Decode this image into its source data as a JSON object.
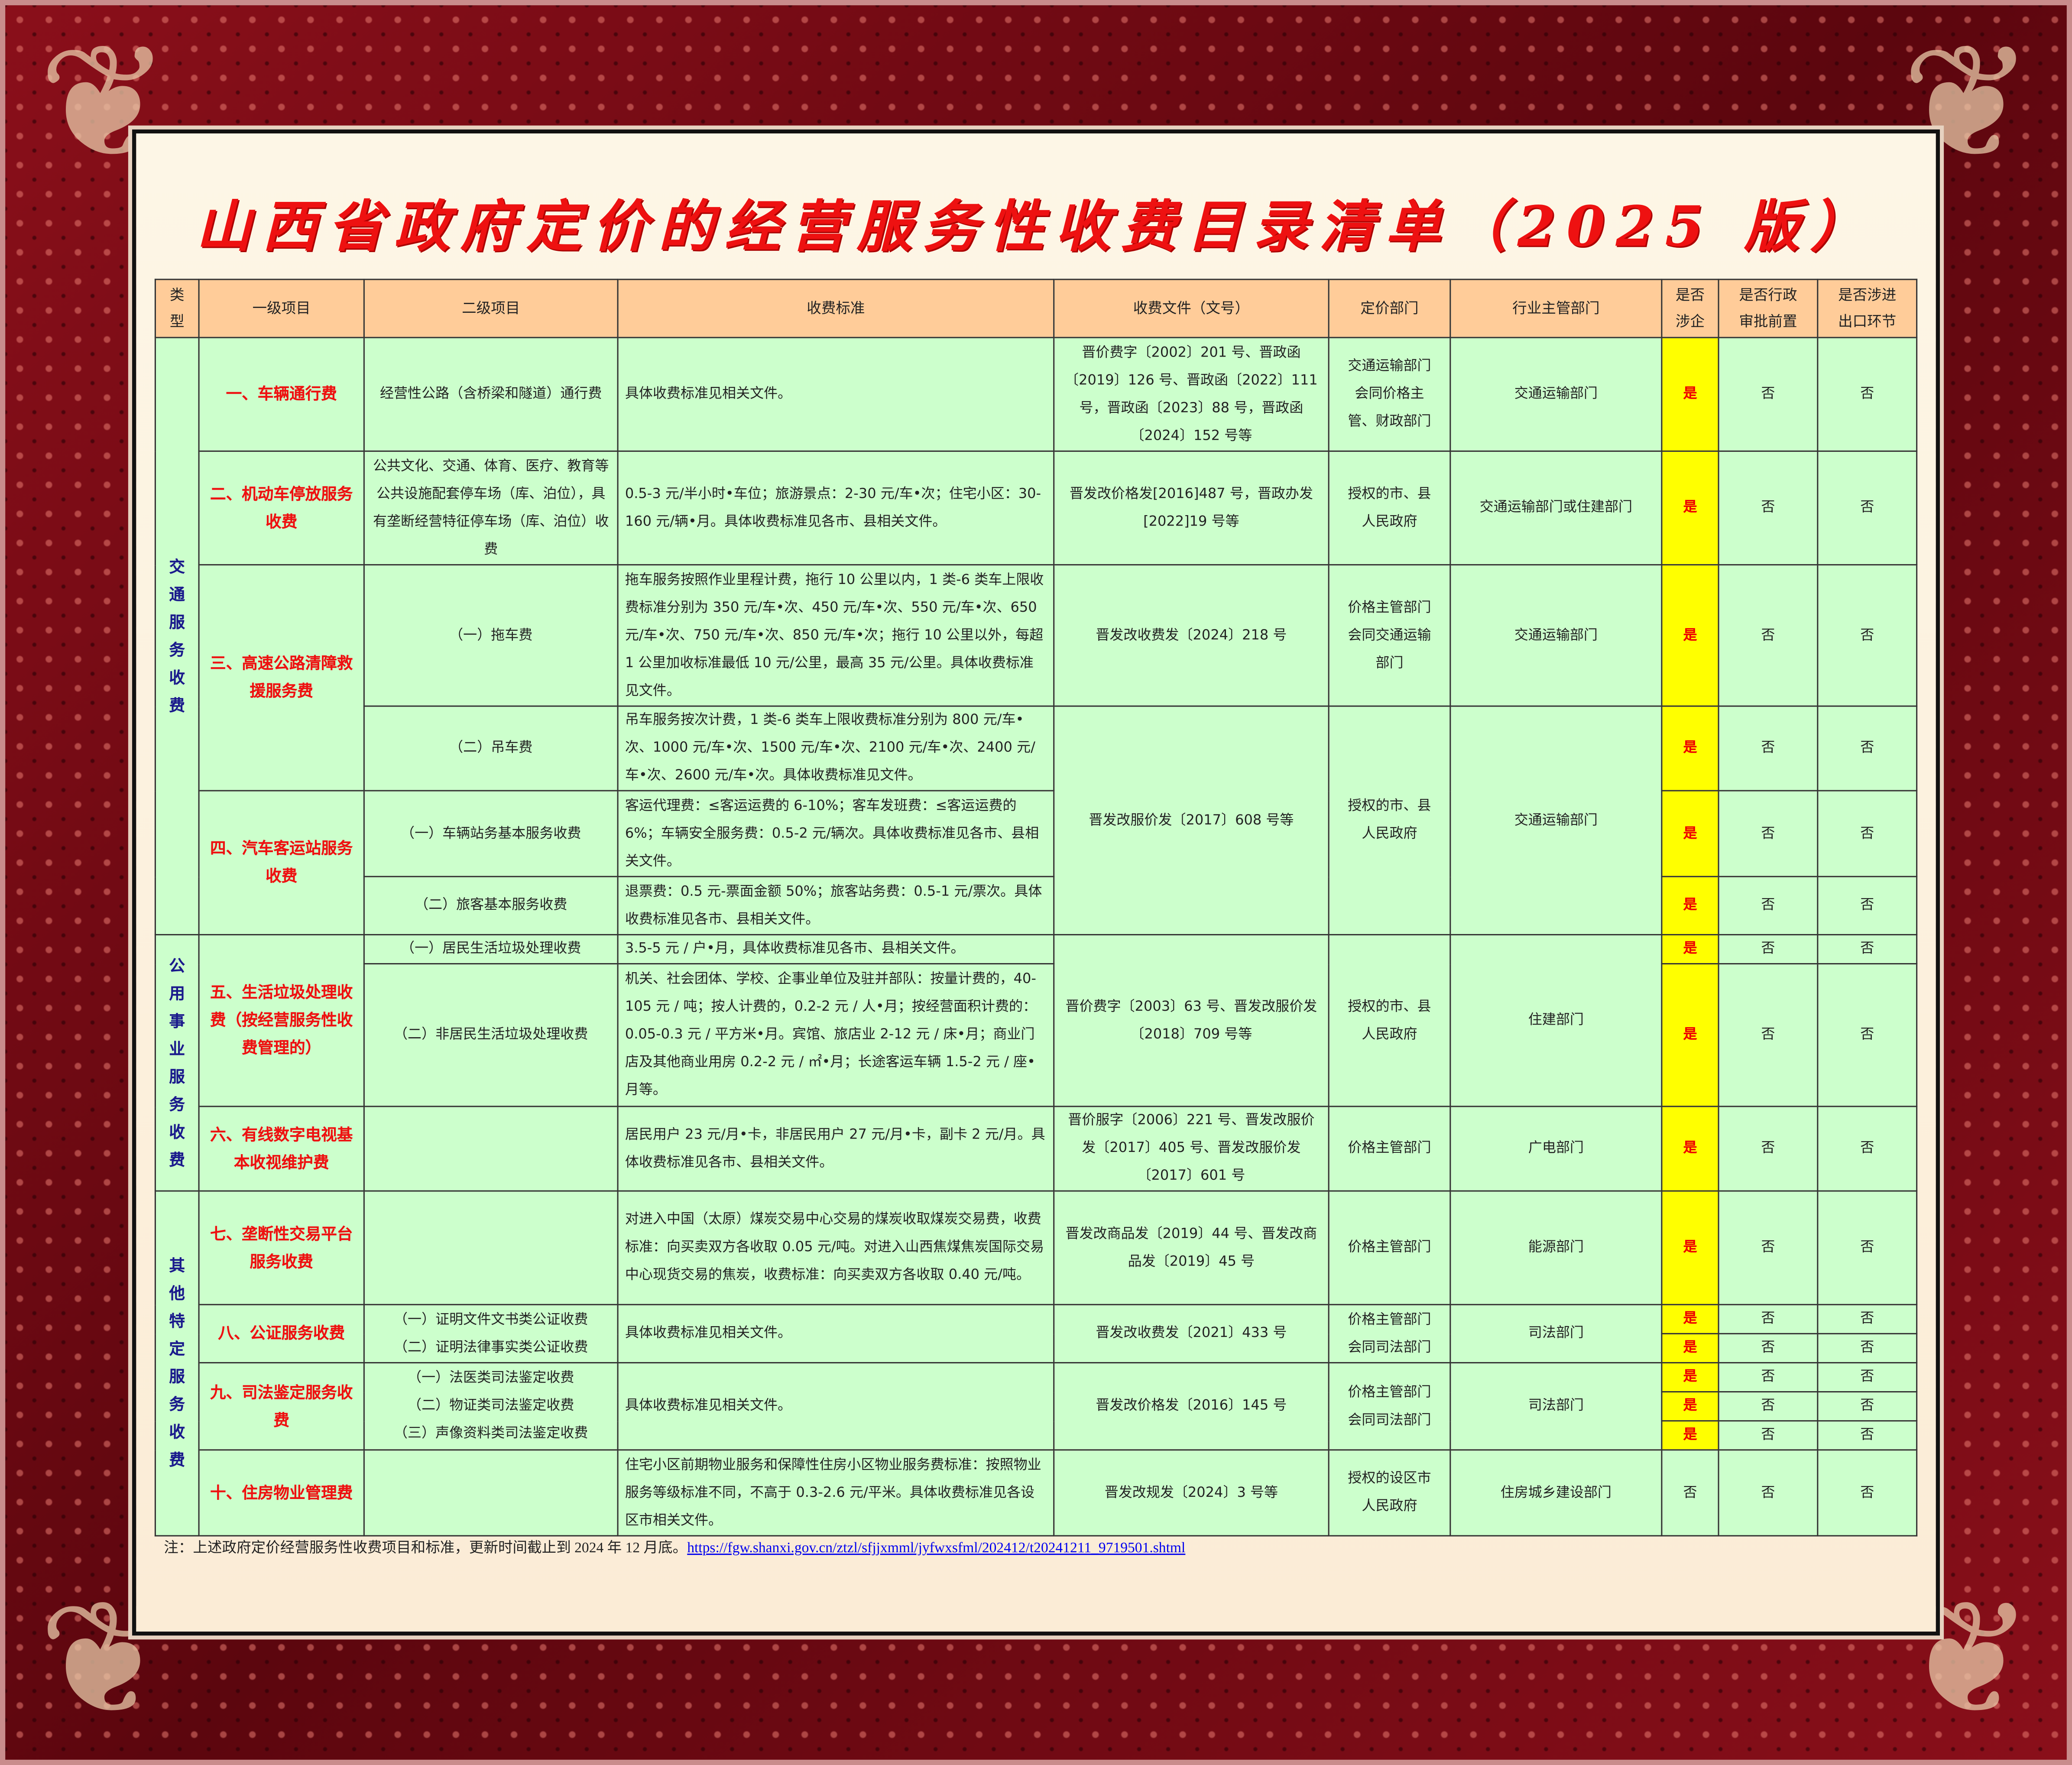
{
  "title": "山西省政府定价的经营服务性收费目录清单（2025 版）",
  "colors": {
    "frame": "#6d0a12",
    "header": "#ffcc99",
    "cell": "#ccffcc",
    "highlight": "#ffff00",
    "accent_red": "#ee1111",
    "category_blue": "#1a1a8c"
  },
  "columns": [
    "类\n型",
    "一级项目",
    "二级项目",
    "收费标准",
    "收费文件（文号）",
    "定价部门",
    "行业主管部门",
    "是否\n涉企",
    "是否行政\n审批前置",
    "是否涉进\n出口环节"
  ],
  "rows": [
    {
      "category": "交\n通\n服\n务\n收\n费",
      "level1": "一、车辆通行费",
      "level2": "经营性公路（含桥梁和隧道）通行费",
      "standard": "具体收费标准见相关文件。",
      "document": "晋价费字〔2002〕201 号、晋政函〔2019〕126 号、晋政函〔2022〕111 号，晋政函〔2023〕88 号，晋政函〔2024〕152 号等",
      "pricing_dept": "交通运输部门\n会同价格主\n管、财政部门",
      "industry_dept": "交通运输部门",
      "involves_enterprise": "是",
      "admin_approval": "否",
      "import_export": "否"
    },
    {
      "level1": "二、机动车停放服务收费",
      "level2": "公共文化、交通、体育、医疗、教育等公共设施配套停车场（库、泊位），具有垄断经营特征停车场（库、泊位）收费",
      "standard": "0.5-3 元/半小时•车位；旅游景点：2-30 元/车•次；住宅小区：30-160 元/辆•月。具体收费标准见各市、县相关文件。",
      "document": "晋发改价格发[2016]487 号，晋政办发[2022]19 号等",
      "pricing_dept": "授权的市、县\n人民政府",
      "industry_dept": "交通运输部门或住建部门",
      "involves_enterprise": "是",
      "admin_approval": "否",
      "import_export": "否"
    },
    {
      "level1": "三、高速公路清障救援服务费",
      "level2": "（一）拖车费",
      "standard": "拖车服务按照作业里程计费，拖行 10 公里以内，1 类-6 类车上限收费标准分别为 350 元/车•次、450 元/车•次、550 元/车•次、650 元/车•次、750 元/车•次、850 元/车•次；拖行 10 公里以外，每超 1 公里加收标准最低 10 元/公里，最高 35 元/公里。具体收费标准见文件。",
      "document": "晋发改收费发〔2024〕218 号",
      "pricing_dept": "价格主管部门\n会同交通运输\n部门",
      "industry_dept": "交通运输部门",
      "involves_enterprise": "是",
      "admin_approval": "否",
      "import_export": "否"
    },
    {
      "level2": "（二）吊车费",
      "standard": "吊车服务按次计费，1 类-6 类车上限收费标准分别为 800 元/车•次、1000 元/车•次、1500 元/车•次、2100 元/车•次、2400 元/车•次、2600 元/车•次。具体收费标准见文件。",
      "document": "晋发改服价发〔2017〕608 号等",
      "pricing_dept": "授权的市、县\n人民政府",
      "industry_dept": "交通运输部门",
      "involves_enterprise": "是",
      "admin_approval": "否",
      "import_export": "否"
    },
    {
      "level1": "四、汽车客运站服务收费",
      "level2": "（一）车辆站务基本服务收费",
      "standard": "客运代理费：≤客运运费的 6-10%；客车发班费：≤客运运费的 6%；车辆安全服务费：0.5-2 元/辆次。具体收费标准见各市、县相关文件。",
      "involves_enterprise": "是",
      "admin_approval": "否",
      "import_export": "否"
    },
    {
      "level2": "（二）旅客基本服务收费",
      "standard": "退票费：0.5 元-票面金额 50%；旅客站务费：0.5-1 元/票次。具体收费标准见各市、县相关文件。",
      "involves_enterprise": "是",
      "admin_approval": "否",
      "import_export": "否"
    },
    {
      "category": "公\n用\n事\n业\n服\n务\n收\n费",
      "level1": "五、生活垃圾处理收费（按经营服务性收费管理的）",
      "level2": "（一）居民生活垃圾处理收费",
      "standard": "3.5-5 元 / 户•月，具体收费标准见各市、县相关文件。",
      "document": "晋价费字〔2003〕63 号、晋发改服价发〔2018〕709 号等",
      "pricing_dept": "授权的市、县\n人民政府",
      "industry_dept": "住建部门",
      "involves_enterprise": "是",
      "admin_approval": "否",
      "import_export": "否"
    },
    {
      "level2": "（二）非居民生活垃圾处理收费",
      "standard": "机关、社会团体、学校、企事业单位及驻并部队：按量计费的，40-105 元 / 吨；按人计费的，0.2-2 元 / 人•月；按经营面积计费的：0.05-0.3 元 / 平方米•月。宾馆、旅店业 2-12 元 / 床•月；商业门店及其他商业用房 0.2-2 元 / ㎡•月；长途客运车辆 1.5-2 元 / 座•月等。",
      "involves_enterprise": "是",
      "admin_approval": "否",
      "import_export": "否"
    },
    {
      "level1": "六、有线数字电视基本收视维护费",
      "level2": "",
      "standard": "居民用户 23 元/月•卡，非居民用户 27 元/月•卡，副卡 2 元/月。具体收费标准见各市、县相关文件。",
      "document": "晋价服字〔2006〕221 号、晋发改服价发〔2017〕405 号、晋发改服价发〔2017〕601 号",
      "pricing_dept": "价格主管部门",
      "industry_dept": "广电部门",
      "involves_enterprise": "是",
      "admin_approval": "否",
      "import_export": "否"
    },
    {
      "category": "其\n他\n特\n定\n服\n务\n收\n费",
      "level1": "七、垄断性交易平台服务收费",
      "level2": "",
      "standard": "对进入中国（太原）煤炭交易中心交易的煤炭收取煤炭交易费，收费标准：向买卖双方各收取 0.05 元/吨。对进入山西焦煤焦炭国际交易中心现货交易的焦炭，收费标准：向买卖双方各收取 0.40 元/吨。",
      "document": "晋发改商品发〔2019〕44 号、晋发改商品发〔2019〕45 号",
      "pricing_dept": "价格主管部门",
      "industry_dept": "能源部门",
      "involves_enterprise": "是",
      "admin_approval": "否",
      "import_export": "否"
    },
    {
      "level1": "八、公证服务收费",
      "level2": "（一）证明文件文书类公证收费\n（二）证明法律事实类公证收费",
      "standard": "具体收费标准见相关文件。",
      "document": "晋发改收费发〔2021〕433 号",
      "pricing_dept": "价格主管部门\n会同司法部门",
      "industry_dept": "司法部门",
      "involves_enterprise": "是",
      "admin_approval": "否",
      "import_export": "否"
    },
    {
      "involves_enterprise": "是",
      "admin_approval": "否",
      "import_export": "否"
    },
    {
      "level1": "九、司法鉴定服务收费",
      "level2": "（一）法医类司法鉴定收费\n（二）物证类司法鉴定收费\n（三）声像资料类司法鉴定收费",
      "standard": "具体收费标准见相关文件。",
      "document": "晋发改价格发〔2016〕145 号",
      "pricing_dept": "价格主管部门\n会同司法部门",
      "industry_dept": "司法部门",
      "involves_enterprise": "是",
      "admin_approval": "否",
      "import_export": "否"
    },
    {
      "involves_enterprise": "是",
      "admin_approval": "否",
      "import_export": "否"
    },
    {
      "involves_enterprise": "是",
      "admin_approval": "否",
      "import_export": "否"
    },
    {
      "level1": "十、住房物业管理费",
      "level2": "",
      "standard": "住宅小区前期物业服务和保障性住房小区物业服务费标准：按照物业服务等级标准不同，不高于 0.3-2.6 元/平米。具体收费标准见各设区市相关文件。",
      "document": "晋发改规发〔2024〕3 号等",
      "pricing_dept": "授权的设区市\n人民政府",
      "industry_dept": "住房城乡建设部门",
      "involves_enterprise": "否",
      "admin_approval": "否",
      "import_export": "否"
    }
  ],
  "note": {
    "text": "注：上述政府定价经营服务性收费项目和标准，更新时间截止到 2024 年 12 月底。",
    "link": "https://fgw.shanxi.gov.cn/ztzl/sfjjxmml/jyfwxsfml/202412/t20241211_9719501.shtml"
  }
}
